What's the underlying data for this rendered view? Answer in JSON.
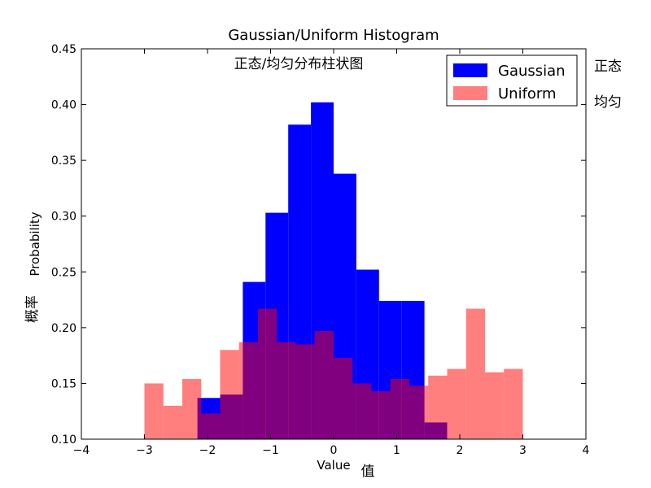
{
  "chart_data": {
    "type": "bar",
    "title": "Gaussian/Uniform Histogram",
    "subtitle": "正态/均匀分布柱状图",
    "xlabel": "Value",
    "xlabel_cn": "值",
    "ylabel": "Probability",
    "ylabel_cn": "概率",
    "xlim": [
      -4,
      4
    ],
    "ylim": [
      0.1,
      0.45
    ],
    "xticks": [
      -4,
      -3,
      -2,
      -1,
      0,
      1,
      2,
      3,
      4
    ],
    "xtick_labels": [
      "−4",
      "−3",
      "−2",
      "−1",
      "0",
      "1",
      "2",
      "3",
      "4"
    ],
    "yticks": [
      0.1,
      0.15,
      0.2,
      0.25,
      0.3,
      0.35,
      0.4,
      0.45
    ],
    "ytick_labels": [
      "0.10",
      "0.15",
      "0.20",
      "0.25",
      "0.30",
      "0.35",
      "0.40",
      "0.45"
    ],
    "legend_position": "top-right",
    "series": [
      {
        "name": "Gaussian",
        "color": "#0000ff",
        "opacity": 1.0,
        "bin_edges": [
          -2.16,
          -1.8,
          -1.44,
          -1.08,
          -0.72,
          -0.36,
          0.0,
          0.36,
          0.72,
          1.08,
          1.44,
          1.8
        ],
        "values": [
          0.137,
          0.14,
          0.241,
          0.303,
          0.382,
          0.402,
          0.338,
          0.252,
          0.224,
          0.224,
          0.115
        ]
      },
      {
        "name": "Uniform",
        "color": "#ff0000",
        "opacity": 0.5,
        "bin_edges": [
          -3.0,
          -2.7,
          -2.4,
          -2.1,
          -1.8,
          -1.5,
          -1.2,
          -0.9,
          -0.6,
          -0.3,
          0.0,
          0.3,
          0.6,
          0.9,
          1.2,
          1.5,
          1.8,
          2.1,
          2.4,
          2.7,
          3.0
        ],
        "values": [
          0.15,
          0.13,
          0.154,
          0.123,
          0.18,
          0.187,
          0.217,
          0.187,
          0.185,
          0.197,
          0.173,
          0.15,
          0.143,
          0.154,
          0.148,
          0.157,
          0.163,
          0.217,
          0.16,
          0.163
        ]
      }
    ],
    "side_labels": [
      "正态",
      "均匀"
    ]
  }
}
